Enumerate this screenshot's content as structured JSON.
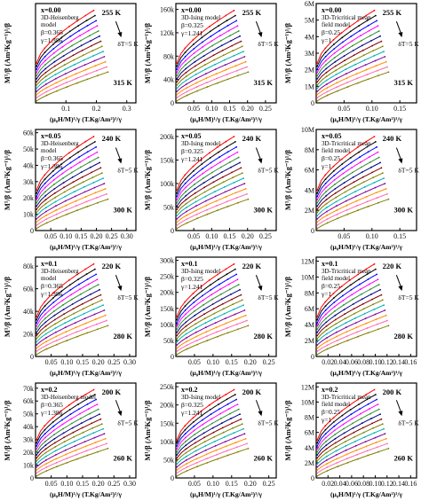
{
  "chart_data": [
    {
      "type": "line",
      "row": 0,
      "col": 0,
      "x_label": "(μ₀H/M)¹/γ (T.Kg/Am²)¹/γ",
      "y_label": "M¹/β (Am²Kg⁻¹)¹/β",
      "x_ticks": [
        "0.1",
        "0.2",
        "0.3"
      ],
      "x_range": [
        0,
        0.33
      ],
      "y_ticks": [],
      "y_range": [
        0,
        1
      ],
      "comp": "x=0.00",
      "model": [
        "3D-Heisenberg",
        "model"
      ],
      "params": [
        "β=0.365",
        "γ=1.386"
      ],
      "t_top": "255 K",
      "t_bot": "315 K",
      "dT": "δT=5 K",
      "n_series": 13
    },
    {
      "type": "line",
      "row": 0,
      "col": 1,
      "x_label": "(μ₀H/M)¹/γ (T.Kg/Am²)¹/γ",
      "y_label": "M¹/β (Am²Kg⁻¹)¹/β",
      "x_ticks": [
        "0.05",
        "0.10",
        "0.15",
        "0.20",
        "0.25"
      ],
      "x_range": [
        0,
        0.28
      ],
      "y_ticks": [
        "0",
        "40k",
        "80k",
        "120k",
        "160k"
      ],
      "y_range": [
        0,
        170000
      ],
      "comp": "x=0.00",
      "model": [
        "3D-Ising model"
      ],
      "params": [
        "β=0.325",
        "γ=1.241"
      ],
      "t_top": "255 K",
      "t_bot": "315 K",
      "dT": "δT=5 K",
      "n_series": 13
    },
    {
      "type": "line",
      "row": 0,
      "col": 2,
      "x_label": "(μ₀H/M)¹/γ (T.Kg/Am²)¹/γ",
      "y_label": "M¹/β (Am²Kg⁻¹)¹/β",
      "x_ticks": [
        "0.05",
        "0.10",
        "0.15"
      ],
      "x_range": [
        0,
        0.18
      ],
      "y_ticks": [
        "0",
        "1M",
        "2M",
        "3M",
        "4M",
        "5M",
        "6M"
      ],
      "y_range": [
        0,
        6000000
      ],
      "comp": "x=0.00",
      "model": [
        "3D-Tricritical mean",
        "field model"
      ],
      "params": [
        "β=0.25",
        "γ=1"
      ],
      "t_top": "255 K",
      "t_bot": "315 K",
      "dT": "δT=5 K",
      "n_series": 13
    },
    {
      "type": "line",
      "row": 1,
      "col": 0,
      "x_label": "(μ₀H/M)¹/γ (T.Kg/Am²)¹/γ",
      "y_label": "M¹/β (Am²Kg⁻¹)¹/β",
      "x_ticks": [
        "0.05",
        "0.10",
        "0.15",
        "0.20",
        "0.25",
        "0.30"
      ],
      "x_range": [
        0,
        0.33
      ],
      "y_ticks": [
        "0",
        "10k",
        "20k",
        "30k",
        "40k",
        "50k",
        "60k"
      ],
      "y_range": [
        0,
        62000
      ],
      "comp": "x=0.05",
      "model": [
        "3D-Heisenberg",
        "model"
      ],
      "params": [
        "β=0.365",
        "γ=1.386"
      ],
      "t_top": "240 K",
      "t_bot": "300 K",
      "dT": "δT=5 K",
      "n_series": 13
    },
    {
      "type": "line",
      "row": 1,
      "col": 1,
      "x_label": "(μ₀H/M)¹/γ (T.Kg/Am²)¹/γ",
      "y_label": "M¹/β (Am²Kg⁻¹)¹/β",
      "x_ticks": [
        "0.05",
        "0.10",
        "0.15",
        "0.20",
        "0.25"
      ],
      "x_range": [
        0,
        0.28
      ],
      "y_ticks": [
        "0",
        "50k",
        "100k",
        "150k",
        "200k"
      ],
      "y_range": [
        0,
        215000
      ],
      "comp": "x=0.05",
      "model": [
        "3D-Ising model"
      ],
      "params": [
        "β=0.325",
        "γ=1.241"
      ],
      "t_top": "240 K",
      "t_bot": "300 K",
      "dT": "δT=5 K",
      "n_series": 13
    },
    {
      "type": "line",
      "row": 1,
      "col": 2,
      "x_label": "(μ₀H/M)¹/γ (T.Kg/Am²)¹/γ",
      "y_label": "M¹/β (Am²Kg⁻¹)¹/β",
      "x_ticks": [
        "0.05",
        "0.10",
        "0.15"
      ],
      "x_range": [
        0,
        0.18
      ],
      "y_ticks": [
        "0",
        "2M",
        "4M",
        "6M",
        "8M",
        "10M"
      ],
      "y_range": [
        0,
        10000000
      ],
      "comp": "x=0.05",
      "model": [
        "3D-Tricritical mean",
        "field model"
      ],
      "params": [
        "β=0.25",
        "γ=1"
      ],
      "t_top": "240 K",
      "t_bot": "300 K",
      "dT": "δT=5 K",
      "n_series": 13
    },
    {
      "type": "line",
      "row": 2,
      "col": 0,
      "x_label": "(μ₀H/M)¹/γ (T.Kg/Am²)¹/γ",
      "y_label": "M¹/β (Am²Kg⁻¹)¹/β",
      "x_ticks": [
        "0.05",
        "0.10",
        "0.15",
        "0.20",
        "0.25",
        "0.30"
      ],
      "x_range": [
        0,
        0.32
      ],
      "y_ticks": [
        "0",
        "20k",
        "40k",
        "60k",
        "80k"
      ],
      "y_range": [
        0,
        88000
      ],
      "comp": "x=0.1",
      "model": [
        "3D-Heisenberg",
        "model"
      ],
      "params": [
        "β=0.365",
        "γ=1.386"
      ],
      "t_top": "220 K",
      "t_bot": "280 K",
      "dT": "δT=5 K",
      "n_series": 13
    },
    {
      "type": "line",
      "row": 2,
      "col": 1,
      "x_label": "(μ₀H/M)¹/γ (T.Kg/Am²)¹/γ",
      "y_label": "M¹/β (Am²Kg⁻¹)¹/β",
      "x_ticks": [
        "0.05",
        "0.10",
        "0.15",
        "0.20",
        "0.25"
      ],
      "x_range": [
        0,
        0.27
      ],
      "y_ticks": [
        "0",
        "50k",
        "100k",
        "150k",
        "200k",
        "250k",
        "300k"
      ],
      "y_range": [
        0,
        310000
      ],
      "comp": "x=0.1",
      "model": [
        "3D-Ising model"
      ],
      "params": [
        "β=0.325",
        "γ=1.241"
      ],
      "t_top": "220 K",
      "t_bot": "280 K",
      "dT": "δT=5 K",
      "n_series": 13
    },
    {
      "type": "line",
      "row": 2,
      "col": 2,
      "x_label": "(μ₀H/M)¹/γ (T.Kg/Am²)¹/γ",
      "y_label": "M¹/β (Am²Kg⁻¹)¹/β",
      "x_ticks": [
        "0.02",
        "0.04",
        "0.06",
        "0.08",
        "0.10",
        "0.12",
        "0.14",
        "0.16"
      ],
      "x_range": [
        0,
        0.17
      ],
      "y_ticks": [
        "0",
        "2M",
        "4M",
        "6M",
        "8M",
        "10M",
        "12M"
      ],
      "y_range": [
        0,
        12500000
      ],
      "comp": "x=0.1",
      "model": [
        "3D-Tricritical mean",
        "field model"
      ],
      "params": [
        "β=0.25",
        "γ=1"
      ],
      "t_top": "220 K",
      "t_bot": "280 K",
      "dT": "δT=5 K",
      "n_series": 13
    },
    {
      "type": "line",
      "row": 3,
      "col": 0,
      "x_label": "(μ₀H/M)¹/γ (T.Kg/Am²)¹/γ",
      "y_label": "M¹/β (Am²Kg⁻¹)¹/β",
      "x_ticks": [
        "0.05",
        "0.10",
        "0.15",
        "0.20",
        "0.25",
        "0.30"
      ],
      "x_range": [
        0,
        0.32
      ],
      "y_ticks": [
        "0",
        "10k",
        "20k",
        "30k",
        "40k",
        "50k",
        "60k",
        "70k"
      ],
      "y_range": [
        0,
        74000
      ],
      "comp": "x=0.2",
      "model": [
        "3D-Heisenberg model"
      ],
      "params": [
        "β=0.365",
        "γ=1.386"
      ],
      "t_top": "200 K",
      "t_bot": "260 K",
      "dT": "δT=5 K",
      "n_series": 13
    },
    {
      "type": "line",
      "row": 3,
      "col": 1,
      "x_label": "(μ₀H/M)¹/γ (T.Kg/Am²)¹/γ",
      "y_label": "M¹/β (Am²Kg⁻¹)¹/β",
      "x_ticks": [
        "0.05",
        "0.10",
        "0.15",
        "0.20",
        "0.25"
      ],
      "x_range": [
        0,
        0.27
      ],
      "y_ticks": [
        "0",
        "50k",
        "100k",
        "150k",
        "200k",
        "250k"
      ],
      "y_range": [
        0,
        260000
      ],
      "comp": "x=0.2",
      "model": [
        "3D-Ising model"
      ],
      "params": [
        "β=0.325",
        "γ=1.241"
      ],
      "t_top": "200 K",
      "t_bot": "260 K",
      "dT": "δT=5 K",
      "n_series": 13
    },
    {
      "type": "line",
      "row": 3,
      "col": 2,
      "x_label": "(μ₀H/M)¹/γ (T.Kg/Am²)¹/γ",
      "y_label": "M¹/β (Am²Kg⁻¹)¹/β",
      "x_ticks": [
        "0.02",
        "0.04",
        "0.06",
        "0.08",
        "0.10",
        "0.12",
        "0.14",
        "0.16"
      ],
      "x_range": [
        0,
        0.17
      ],
      "y_ticks": [
        "0",
        "2M",
        "4M",
        "6M",
        "8M",
        "10M",
        "12M"
      ],
      "y_range": [
        0,
        12500000
      ],
      "comp": "x=0.2",
      "model": [
        "3D-Tricritical mean",
        "field model"
      ],
      "params": [
        "β=0.25",
        "γ=1"
      ],
      "t_top": "200 K",
      "t_bot": "260 K",
      "dT": "δT=5 K",
      "n_series": 13
    }
  ],
  "series_colors": [
    "#ff0000",
    "#000000",
    "#0000ff",
    "#ff00ff",
    "#2f8f2f",
    "#000080",
    "#800000",
    "#808000",
    "#00b0b0",
    "#8000a0",
    "#ff8c00",
    "#ff69b4",
    "#7f7f00"
  ]
}
